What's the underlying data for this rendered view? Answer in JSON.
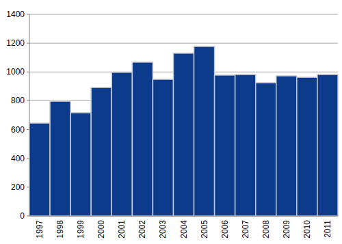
{
  "chart_data": {
    "type": "bar",
    "categories": [
      "1997",
      "1998",
      "1999",
      "2000",
      "2001",
      "2002",
      "2003",
      "2004",
      "2005",
      "2006",
      "2007",
      "2008",
      "2009",
      "2010",
      "2011"
    ],
    "values": [
      645,
      797,
      717,
      892,
      997,
      1068,
      949,
      1130,
      1177,
      978,
      982,
      925,
      973,
      963,
      982
    ],
    "color": "#0d3b8c",
    "ylim": [
      0,
      1400
    ],
    "yticks": [
      0,
      200,
      400,
      600,
      800,
      1000,
      1200,
      1400
    ],
    "grid": true
  }
}
